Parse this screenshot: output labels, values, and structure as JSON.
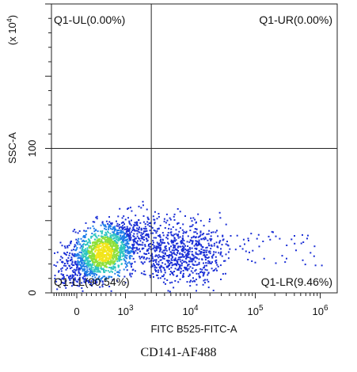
{
  "chart_data": {
    "type": "scatter",
    "title": "",
    "xlabel": "FITC B525-FITC-A",
    "ylabel": "SSC-A",
    "y_multiplier": "(x 10",
    "y_multiplier_exp": "4",
    "x_scale": "biexponential",
    "x_tick_labels": [
      {
        "base": "0",
        "exp": "",
        "value": 0
      },
      {
        "base": "10",
        "exp": "3",
        "value": 1000
      },
      {
        "base": "10",
        "exp": "4",
        "value": 10000
      },
      {
        "base": "10",
        "exp": "5",
        "value": 100000
      },
      {
        "base": "10",
        "exp": "6",
        "value": 1000000
      }
    ],
    "y_tick_labels": [
      {
        "label": "0",
        "value": 0
      },
      {
        "label": "100",
        "value": 100
      }
    ],
    "ylim": [
      0,
      200
    ],
    "gate_x": 2500,
    "gate_y": 100,
    "quadrants": {
      "ul": "Q1-UL(0.00%)",
      "ur": "Q1-UR(0.00%)",
      "ll": "Q1-LL(90.54%)",
      "lr": "Q1-LR(9.46%)"
    },
    "density_colors": [
      "#1b2fd6",
      "#1e7de8",
      "#2fc6c0",
      "#8fe03a",
      "#f2e51a"
    ]
  },
  "caption": "CD141-AF488"
}
